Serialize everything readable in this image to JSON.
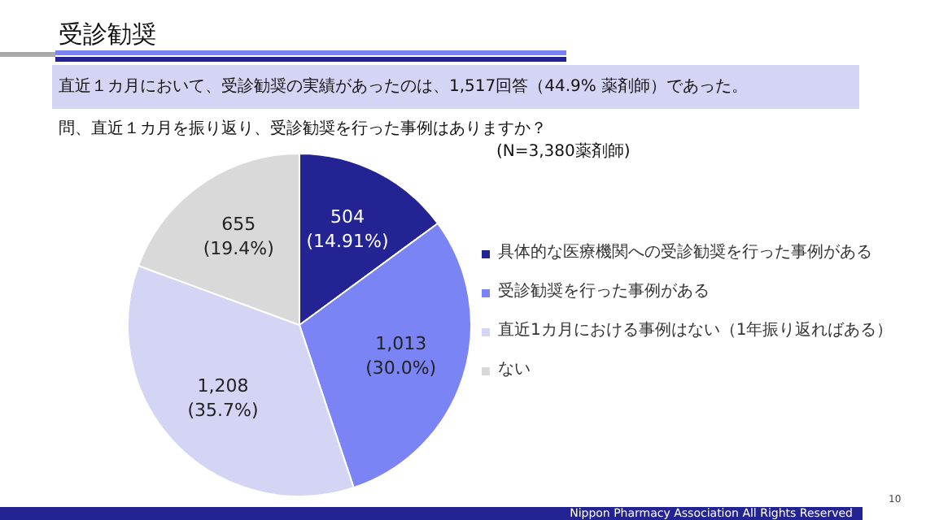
{
  "chart_data": {
    "type": "pie",
    "title": "受診勧奨",
    "subtitle": "直近１カ月において、受診勧奨の実績があったのは、1,517回答（44.9% 薬剤師）であった。",
    "categories": [
      "具体的な医療機関への受診勧奨を行った事例がある",
      "受診勧奨を行った事例がある",
      "直近1カ月における事例はない（1年振り返ればある）",
      "ない"
    ],
    "values": [
      504,
      1013,
      1208,
      655
    ],
    "colors": [
      "#232394",
      "#7b84f5",
      "#d4d4f4",
      "#d9d9d9"
    ],
    "value_labels": [
      "504\n(14.91%)",
      "1,013\n(30.0%)",
      "1,208\n(35.7%)",
      "655\n(19.4%)"
    ],
    "legend": "right",
    "annotations": [
      "問、直近１カ月を振り返り、受診勧奨を行った事例はありますか？",
      "(N=3,380薬剤師)",
      "Nippon Pharmacy Association All Rights Reserved",
      "10"
    ]
  }
}
